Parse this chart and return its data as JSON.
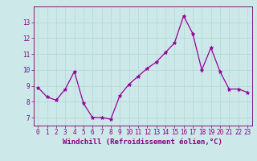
{
  "x": [
    0,
    1,
    2,
    3,
    4,
    5,
    6,
    7,
    8,
    9,
    10,
    11,
    12,
    13,
    14,
    15,
    16,
    17,
    18,
    19,
    20,
    21,
    22,
    23
  ],
  "y": [
    8.9,
    8.3,
    8.1,
    8.8,
    9.9,
    7.9,
    7.0,
    7.0,
    6.9,
    8.4,
    9.1,
    9.6,
    10.1,
    10.5,
    11.1,
    11.7,
    13.4,
    12.3,
    10.0,
    11.4,
    9.9,
    8.8,
    8.8,
    8.6
  ],
  "line_color": "#990099",
  "marker": "*",
  "marker_size": 3.5,
  "xlabel": "Windchill (Refroidissement éolien,°C)",
  "ylim": [
    6.5,
    14.0
  ],
  "xlim": [
    -0.5,
    23.5
  ],
  "yticks": [
    7,
    8,
    9,
    10,
    11,
    12,
    13
  ],
  "xticks": [
    0,
    1,
    2,
    3,
    4,
    5,
    6,
    7,
    8,
    9,
    10,
    11,
    12,
    13,
    14,
    15,
    16,
    17,
    18,
    19,
    20,
    21,
    22,
    23
  ],
  "grid_color": "#b0d8d8",
  "bg_color": "#cce8e8",
  "axis_color": "#660066",
  "tick_color": "#880088",
  "label_color": "#880088",
  "label_fontsize": 6.5,
  "tick_fontsize": 5.5
}
